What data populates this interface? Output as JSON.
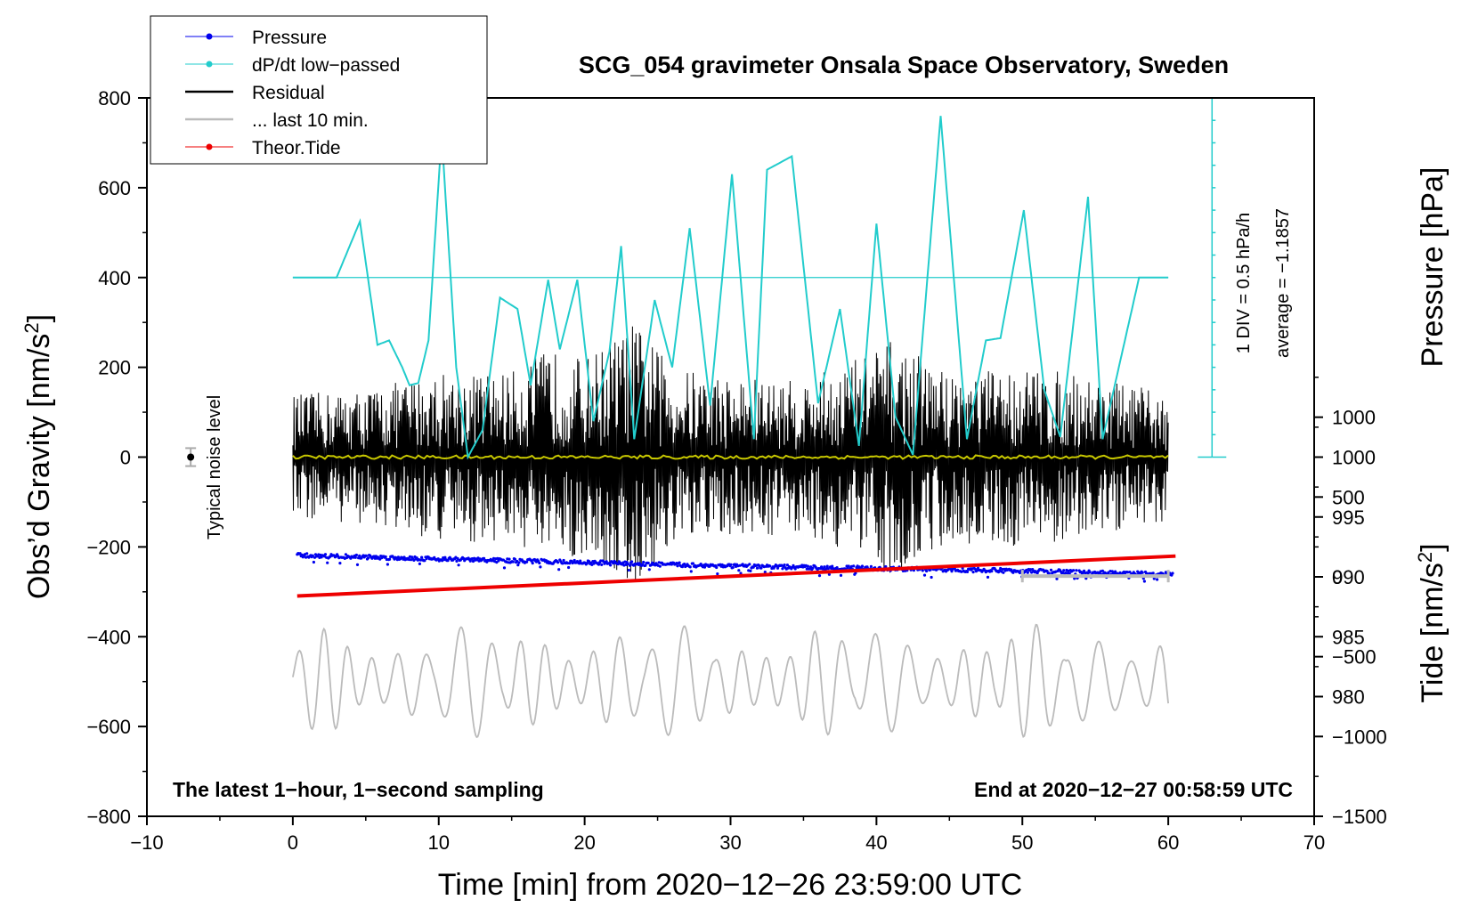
{
  "chart_data": {
    "type": "line",
    "title": "SCG_054 gravimeter Onsala Space Observatory, Sweden",
    "xlabel": "Time [min] from 2020−12−26 23:59:00 UTC",
    "ylabel": "Obs’d Gravity [nm/s²]",
    "ylabel_main": "Obs’d Gravity [nm/s",
    "ylabel_sup": "2",
    "ylabel_end": "]",
    "y2label": "Pressure [hPa]",
    "y3label_main": "Tide [nm/s",
    "y3label_sup": "2",
    "y3label_end": "]",
    "xlim": [
      -10,
      70
    ],
    "ylim": [
      -800,
      800
    ],
    "pressure_lim": [
      970,
      1030
    ],
    "tide_lim": [
      -1500,
      3000
    ],
    "x_ticks": [
      "−10",
      "0",
      "10",
      "20",
      "30",
      "40",
      "50",
      "60",
      "70"
    ],
    "x_tick_values": [
      -10,
      0,
      10,
      20,
      30,
      40,
      50,
      60,
      70
    ],
    "y_ticks": [
      "−800",
      "−600",
      "−400",
      "−200",
      "0",
      "200",
      "400",
      "600",
      "800"
    ],
    "y_tick_values": [
      -800,
      -600,
      -400,
      -200,
      0,
      200,
      400,
      600,
      800
    ],
    "pressure_ticks": [
      "980",
      "985",
      "990",
      "995",
      "1000"
    ],
    "pressure_tick_values": [
      980,
      985,
      990,
      995,
      1000
    ],
    "tide_ticks": [
      "−1500",
      "−1000",
      "−500",
      "0",
      "500",
      "1000"
    ],
    "tide_tick_values": [
      -1500,
      -1000,
      -500,
      0,
      500,
      1000
    ],
    "legend": [
      {
        "label": "Pressure",
        "color": "#0000ee",
        "style": "line-dot"
      },
      {
        "label": "dP/dt low−passed",
        "color": "#22cccc",
        "style": "line-dot"
      },
      {
        "label": "Residual",
        "color": "#000000",
        "style": "line"
      },
      {
        "label": "... last 10 min.",
        "color": "#bbbbbb",
        "style": "line"
      },
      {
        "label": "Theor.Tide",
        "color": "#ee0000",
        "style": "line-dot"
      }
    ],
    "annotations": {
      "noise_label": "Typical noise level",
      "div_label": "1 DIV = 0.5 hPa/h",
      "average_label": "average = −1.1857",
      "footer_left": "The latest 1−hour, 1−second sampling",
      "footer_right": "End at 2020−12−27 00:58:59 UTC"
    },
    "noise_level": {
      "x": -7,
      "y": 0,
      "err": 20
    },
    "last10_bar": {
      "x_start": 50,
      "x_end": 60,
      "y": -265
    },
    "dpdt_baseline_y": 400,
    "dpdt_scale_x": 63,
    "dpdt_scale_y_range": [
      0,
      800
    ],
    "series": [
      {
        "name": "Pressure",
        "color": "#0000ee",
        "unit": "hPa",
        "x": [
          0.3,
          10,
          20,
          30,
          40,
          50,
          60.3
        ],
        "values": [
          991.8,
          991.5,
          991.2,
          990.9,
          990.7,
          990.5,
          990.2
        ]
      },
      {
        "name": "dP/dt low-passed",
        "color": "#22cccc",
        "unit": "nm/s2 axis (scaled)",
        "x": [
          0.0,
          3.0,
          4.6,
          5.8,
          6.6,
          7.5,
          8.0,
          8.6,
          9.3,
          10.2,
          11.2,
          12.0,
          13.0,
          14.2,
          15.4,
          16.3,
          17.5,
          18.3,
          19.5,
          20.6,
          21.7,
          22.5,
          23.4,
          24.8,
          26.0,
          27.2,
          28.6,
          30.1,
          31.6,
          32.5,
          34.2,
          36.0,
          37.5,
          38.8,
          40.0,
          41.3,
          42.5,
          44.4,
          46.2,
          47.5,
          48.5,
          50.1,
          51.5,
          52.6,
          54.5,
          55.5,
          58.0,
          60.0
        ],
        "values": [
          400,
          400,
          525,
          250,
          260,
          200,
          160,
          165,
          260,
          720,
          200,
          0,
          60,
          355,
          330,
          160,
          395,
          240,
          395,
          80,
          235,
          470,
          40,
          350,
          200,
          510,
          115,
          630,
          40,
          640,
          670,
          120,
          330,
          25,
          520,
          90,
          5,
          760,
          40,
          260,
          265,
          550,
          150,
          45,
          580,
          40,
          400,
          400
        ]
      },
      {
        "name": "Residual",
        "color": "#000000",
        "unit": "nm/s2",
        "x": [
          0,
          5,
          10,
          15,
          17.5,
          20,
          23.5,
          26,
          30,
          35,
          41,
          45,
          50,
          55,
          60
        ],
        "envelope": [
          140,
          150,
          190,
          190,
          240,
          220,
          300,
          200,
          180,
          170,
          260,
          190,
          200,
          180,
          140
        ]
      },
      {
        "name": "Residual (smoothed)",
        "color": "#c8c800",
        "unit": "nm/s2",
        "x": [
          0,
          60
        ],
        "values": [
          0,
          0
        ]
      },
      {
        "name": "... last 10 min.",
        "color": "#bbbbbb",
        "unit": "nm/s2 (offset)",
        "x": [
          0,
          60
        ],
        "center": -500,
        "envelope": [
          130,
          130
        ]
      },
      {
        "name": "Theor.Tide",
        "color": "#ee0000",
        "unit": "nm/s2 (tide axis)",
        "x": [
          0.3,
          60.5
        ],
        "values": [
          -120,
          130
        ]
      }
    ]
  }
}
